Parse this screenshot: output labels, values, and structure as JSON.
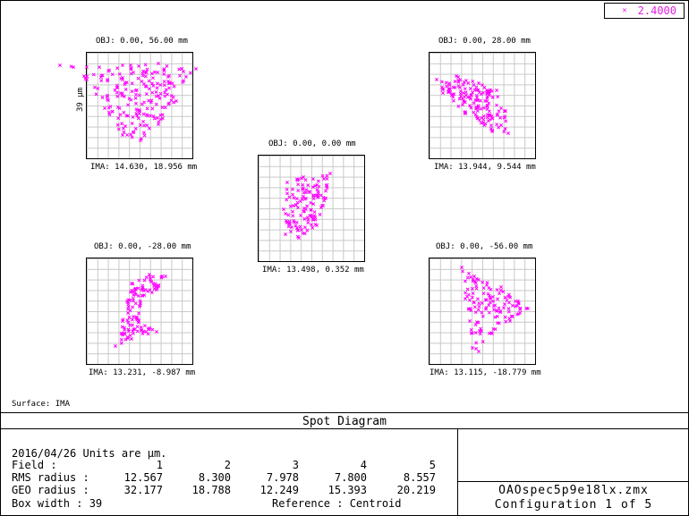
{
  "window": {
    "title": "Spot Diagram"
  },
  "legend": {
    "wavelength": "2.4000",
    "color": "#ff00ff"
  },
  "surface_label": "Surface: IMA",
  "scale_label": "39 µm",
  "fields": [
    {
      "id": 1,
      "obj": "OBJ: 0.00, 0.00 mm",
      "ima": "IMA: 13.498, 0.352 mm"
    },
    {
      "id": 2,
      "obj": "OBJ: 0.00, 28.00 mm",
      "ima": "IMA: 13.944, 9.544 mm"
    },
    {
      "id": 3,
      "obj": "OBJ: 0.00, -28.00 mm",
      "ima": "IMA: 13.231, -8.987 mm"
    },
    {
      "id": 4,
      "obj": "OBJ: 0.00, 56.00 mm",
      "ima": "IMA: 14.630, 18.956 mm"
    },
    {
      "id": 5,
      "obj": "OBJ: 0.00, -56.00 mm",
      "ima": "IMA: 13.115, -18.779 mm"
    }
  ],
  "info": {
    "date_units": "2016/04/26  Units are µm.",
    "field_label": "Field     :",
    "field_numbers": [
      "1",
      "2",
      "3",
      "4",
      "5"
    ],
    "rms_label": "RMS radius :",
    "rms_values": [
      "12.567",
      "8.300",
      "7.978",
      "7.800",
      "8.557"
    ],
    "geo_label": "GEO radius :",
    "geo_values": [
      "32.177",
      "18.788",
      "12.249",
      "15.393",
      "20.219"
    ],
    "box_width": "Box width  : 39",
    "reference": "Reference  : Centroid"
  },
  "file": {
    "name": "OAOspec5p9e18lx.zmx",
    "config": "Configuration 1 of 5"
  }
}
